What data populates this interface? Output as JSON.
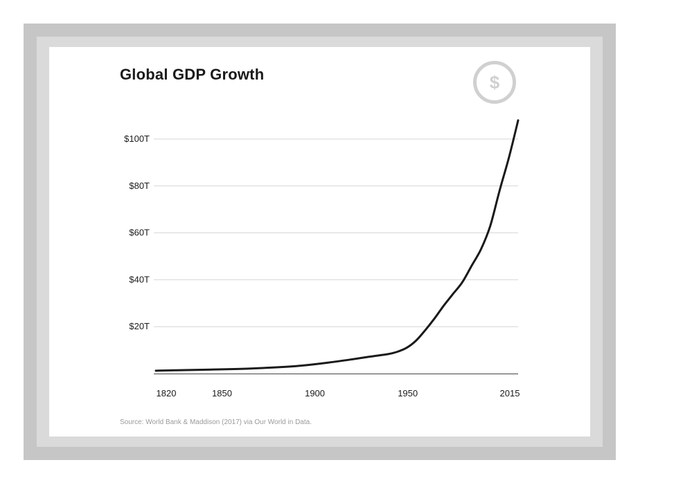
{
  "icon_color": "#d0d0d0",
  "line_color": "#1a1a1a",
  "chart_data": {
    "type": "line",
    "title": "Global GDP Growth",
    "xlabel": "",
    "ylabel": "",
    "grid": true,
    "x": [
      1820,
      1830,
      1850,
      1870,
      1890,
      1900,
      1913,
      1925,
      1935,
      1945,
      1950,
      1955,
      1960,
      1965,
      1970,
      1975,
      1980,
      1985,
      1990,
      1995,
      2000,
      2005,
      2010,
      2015
    ],
    "series": [
      {
        "values": [
          1.2,
          1.4,
          1.7,
          2.1,
          2.9,
          3.5,
          4.7,
          6.0,
          7.2,
          8.3,
          9.3,
          11.0,
          14.0,
          18.5,
          23.5,
          29.0,
          34.0,
          39.0,
          46.0,
          53.0,
          63.0,
          78.0,
          92.0,
          108.0
        ]
      }
    ],
    "ylim": [
      0,
      108
    ],
    "xlim": [
      1820,
      2015
    ],
    "y_ticks": [
      {
        "value": 20,
        "label": "$20T"
      },
      {
        "value": 40,
        "label": "$40T"
      },
      {
        "value": 60,
        "label": "$60T"
      },
      {
        "value": 80,
        "label": "$80T"
      },
      {
        "value": 100,
        "label": "$100T"
      }
    ],
    "x_ticks": [
      {
        "value": 1820,
        "label": "1820"
      },
      {
        "value": 1850,
        "label": "1850"
      },
      {
        "value": 1900,
        "label": "1900"
      },
      {
        "value": 1950,
        "label": "1950"
      },
      {
        "value": 2015,
        "label": "2015"
      }
    ],
    "source": "Source: World Bank & Maddison (2017) via Our World in Data."
  }
}
